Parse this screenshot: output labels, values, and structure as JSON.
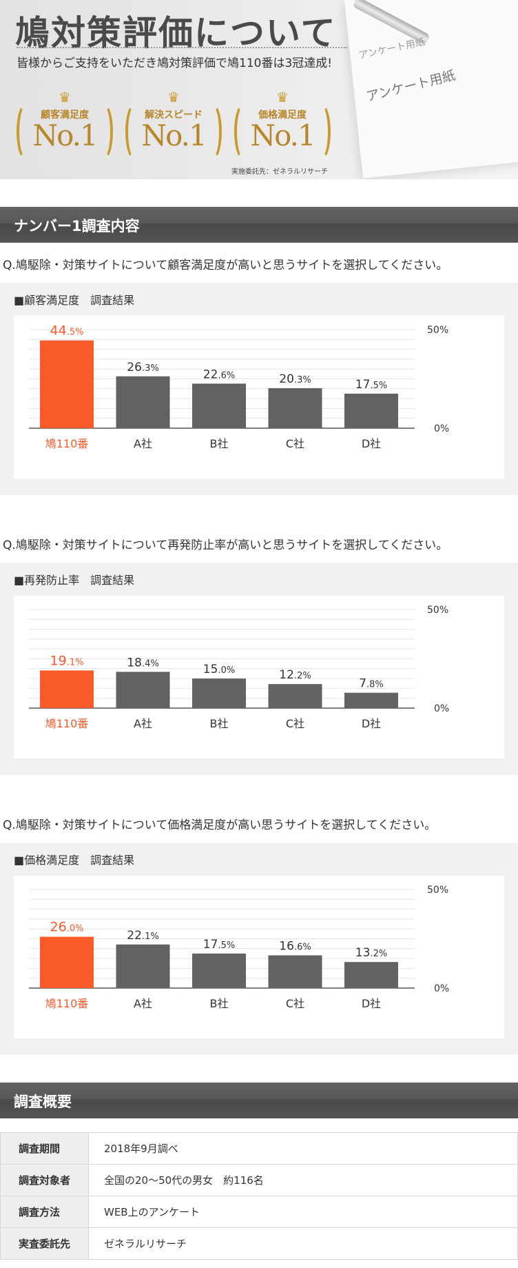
{
  "hero": {
    "title": "鳩対策評価について",
    "description": "皆様からご支持をいただき鳩対策評価で鳩110番は3冠達成!",
    "paper_text_a": "アンケート用紙",
    "paper_text_b": "アンケート用紙",
    "medals": [
      {
        "label": "顧客満足度",
        "value": "No.1"
      },
      {
        "label": "解決スピード",
        "value": "No.1"
      },
      {
        "label": "価格満足度",
        "value": "No.1"
      }
    ],
    "note": "実施委託先：ゼネラルリサーチ",
    "crown_icon": "crown-icon",
    "gold_color": "#c99a2e"
  },
  "section1": {
    "title": "ナンバー1調査内容"
  },
  "surveys": [
    {
      "question": "Q.鳩駆除・対策サイトについて顧客満足度が高いと思うサイトを選択してください。",
      "box_title": "■顧客満足度　調査結果"
    },
    {
      "question": "Q.鳩駆除・対策サイトについて再発防止率が高いと思うサイトを選択してください。",
      "box_title": "■再発防止率　調査結果"
    },
    {
      "question": "Q.鳩駆除・対策サイトについて価格満足度が高い思うサイトを選択してください。",
      "box_title": "■価格満足度　調査結果"
    }
  ],
  "chart_data": [
    {
      "type": "bar",
      "categories": [
        "鳩110番",
        "A社",
        "B社",
        "C社",
        "D社"
      ],
      "values": [
        44.5,
        26.3,
        22.6,
        20.3,
        17.5
      ],
      "value_labels": [
        [
          "44",
          ".5%"
        ],
        [
          "26",
          ".3%"
        ],
        [
          "22",
          ".6%"
        ],
        [
          "20",
          ".3%"
        ],
        [
          "17",
          ".5%"
        ]
      ],
      "ylim": [
        0,
        50
      ],
      "ytick_labels": [
        "50%",
        "0%"
      ],
      "grid": true,
      "highlight_color": "#fa5a28",
      "bar_color": "#626262"
    },
    {
      "type": "bar",
      "categories": [
        "鳩110番",
        "A社",
        "B社",
        "C社",
        "D社"
      ],
      "values": [
        19.1,
        18.4,
        15.0,
        12.2,
        7.8
      ],
      "value_labels": [
        [
          "19",
          ".1%"
        ],
        [
          "18",
          ".4%"
        ],
        [
          "15",
          ".0%"
        ],
        [
          "12",
          ".2%"
        ],
        [
          "7",
          ".8%"
        ]
      ],
      "ylim": [
        0,
        50
      ],
      "ytick_labels": [
        "50%",
        "0%"
      ],
      "grid": true,
      "highlight_color": "#fa5a28",
      "bar_color": "#626262"
    },
    {
      "type": "bar",
      "categories": [
        "鳩110番",
        "A社",
        "B社",
        "C社",
        "D社"
      ],
      "values": [
        26.0,
        22.1,
        17.5,
        16.6,
        13.2
      ],
      "value_labels": [
        [
          "26",
          ".0%"
        ],
        [
          "22",
          ".1%"
        ],
        [
          "17",
          ".5%"
        ],
        [
          "16",
          ".6%"
        ],
        [
          "13",
          ".2%"
        ]
      ],
      "ylim": [
        0,
        50
      ],
      "ytick_labels": [
        "50%",
        "0%"
      ],
      "grid": true,
      "highlight_color": "#fa5a28",
      "bar_color": "#626262"
    }
  ],
  "section2": {
    "title": "調査概要"
  },
  "summary": [
    {
      "label": "調査期間",
      "value": "2018年9月調べ"
    },
    {
      "label": "調査対象者",
      "value": "全国の20～50代の男女　約116名"
    },
    {
      "label": "調査方法",
      "value": "WEB上のアンケート"
    },
    {
      "label": "実査委託先",
      "value": "ゼネラルリサーチ"
    }
  ]
}
